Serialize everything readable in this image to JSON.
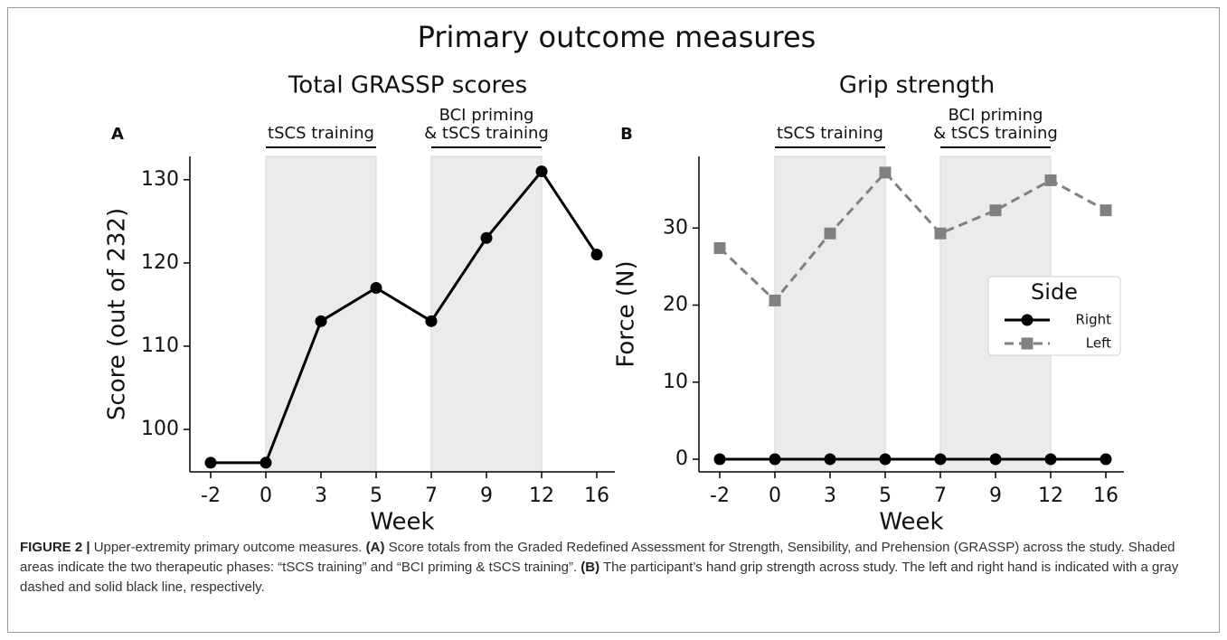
{
  "title": "Primary outcome measures",
  "chart_data": [
    {
      "type": "line",
      "title": "Total GRASSP scores",
      "panel": "A",
      "x_label": "Week",
      "y_label": "Score (out of 232)",
      "categories": [
        "-2",
        "0",
        "3",
        "5",
        "7",
        "9",
        "12",
        "16"
      ],
      "values": [
        96,
        96,
        113,
        117,
        113,
        123,
        131,
        121
      ],
      "color": "#000000",
      "marker": "circle",
      "linestyle": "solid",
      "ylim": [
        94.9,
        132.8
      ],
      "yticks": [
        100,
        110,
        120,
        130
      ],
      "spans": [
        {
          "start": "0",
          "end": "5",
          "label": [
            "tSCS training"
          ]
        },
        {
          "start": "7",
          "end": "12",
          "label": [
            "BCI priming",
            "& tSCS training"
          ]
        }
      ]
    },
    {
      "type": "line",
      "title": "Grip strength",
      "panel": "B",
      "x_label": "Week",
      "y_label": "Force (N)",
      "categories": [
        "-2",
        "0",
        "3",
        "5",
        "7",
        "9",
        "12",
        "16"
      ],
      "series": [
        {
          "name": "Right",
          "color": "#000000",
          "marker": "circle",
          "linestyle": "solid",
          "values": [
            0,
            0,
            0,
            0,
            0,
            0,
            0,
            0
          ]
        },
        {
          "name": "Left",
          "color": "#808080",
          "marker": "square",
          "linestyle": "dashed",
          "values": [
            27.4,
            20.6,
            29.3,
            37.2,
            29.3,
            32.3,
            36.2,
            32.3
          ]
        }
      ],
      "legend_title": "Side",
      "legend": "right",
      "ylim": [
        -1.64,
        39.3
      ],
      "yticks": [
        0,
        10,
        20,
        30
      ],
      "spans": [
        {
          "start": "0",
          "end": "5",
          "label": [
            "tSCS training"
          ]
        },
        {
          "start": "7",
          "end": "12",
          "label": [
            "BCI priming",
            "& tSCS training"
          ]
        }
      ]
    }
  ],
  "caption": {
    "figure_label": "FIGURE 2 |",
    "parts": [
      {
        "text": " Upper-extremity primary outcome measures. ",
        "bold": false
      },
      {
        "text": "(A)",
        "bold": true
      },
      {
        "text": " Score totals from the Graded Redefined Assessment for Strength, Sensibility, and Prehension (GRASSP) across the study. Shaded areas indicate the two therapeutic phases: “tSCS training” and “BCI priming & tSCS training”. ",
        "bold": false
      },
      {
        "text": "(B)",
        "bold": true
      },
      {
        "text": " The participant’s hand grip strength across study. The left and right hand is indicated with a gray dashed and solid black line, respectively.",
        "bold": false
      }
    ]
  }
}
